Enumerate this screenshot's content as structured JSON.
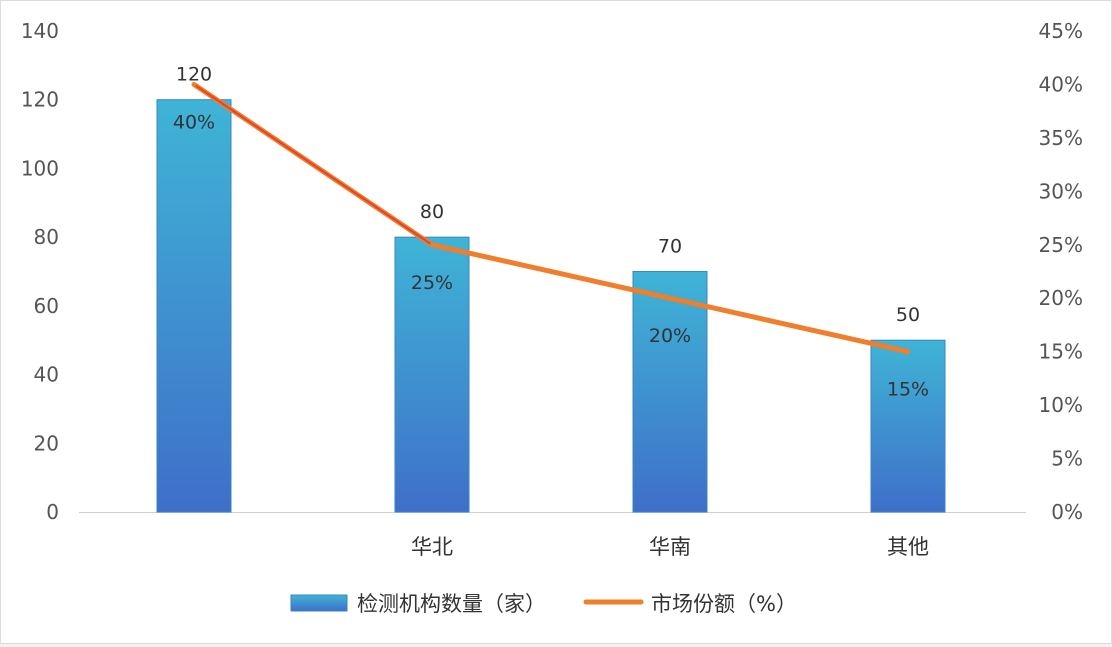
{
  "chart_data": {
    "type": "bar",
    "categories": [
      "",
      "华北",
      "华南",
      "其他"
    ],
    "series": [
      {
        "name": "检测机构数量（家）",
        "type": "bar",
        "axis": "left",
        "values": [
          120,
          80,
          70,
          50
        ],
        "labels": [
          "120",
          "80",
          "70",
          "50"
        ],
        "color_top": "#3fb4d6",
        "color_bottom": "#3f6fc9"
      },
      {
        "name": "市场份额（%）",
        "type": "line",
        "axis": "right",
        "values": [
          40,
          25,
          20,
          15
        ],
        "labels": [
          "40%",
          "25%",
          "20%",
          "15%"
        ],
        "color": "#f07e2a",
        "highlight_color": "#e03a2e"
      }
    ],
    "y_left": {
      "lim": [
        0,
        140
      ],
      "ticks": [
        "0",
        "20",
        "40",
        "60",
        "80",
        "100",
        "120",
        "140"
      ]
    },
    "y_right": {
      "lim": [
        0,
        45
      ],
      "ticks": [
        "0%",
        "5%",
        "10%",
        "15%",
        "20%",
        "25%",
        "30%",
        "35%",
        "40%",
        "45%"
      ]
    },
    "grid": false,
    "legend": "bottom"
  }
}
